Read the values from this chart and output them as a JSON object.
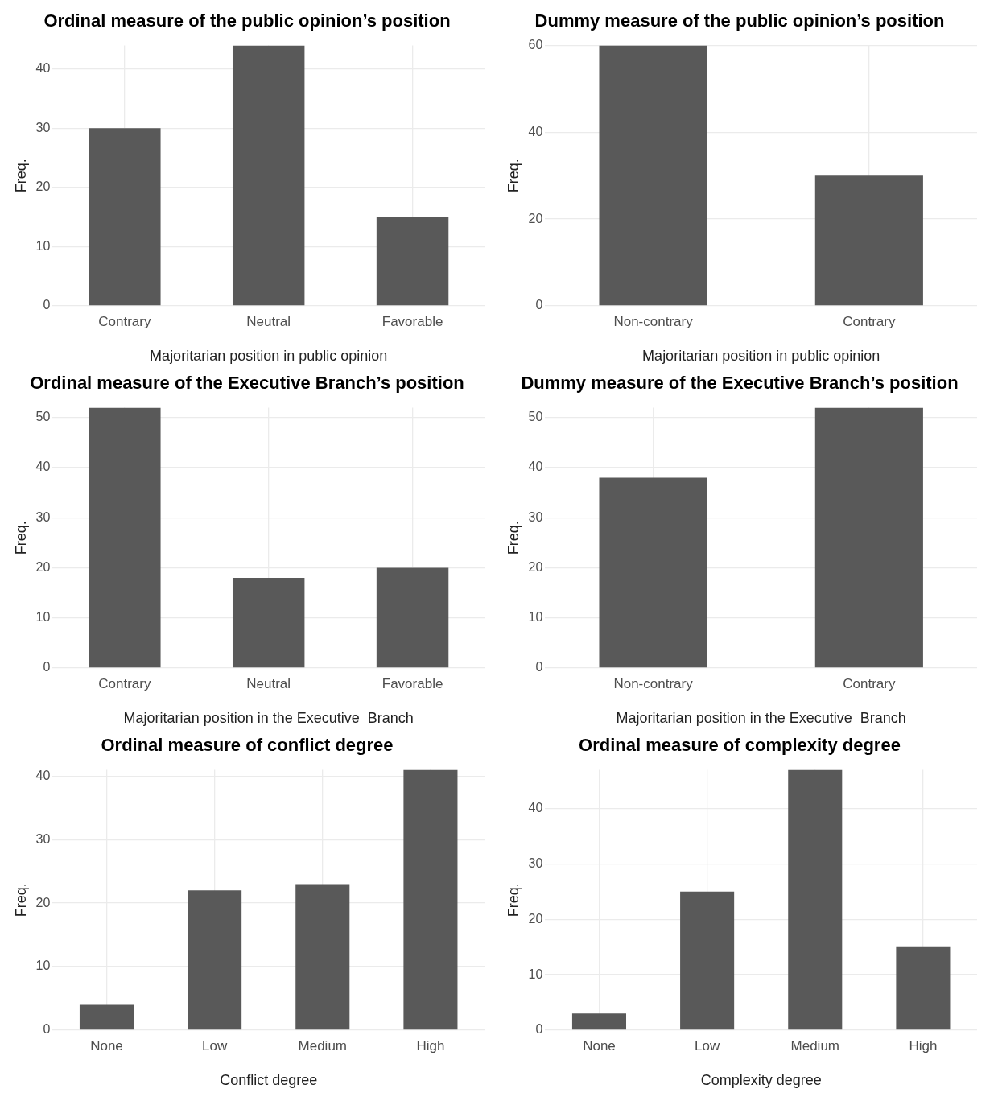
{
  "chart_data": [
    {
      "type": "bar",
      "title": "Ordinal measure of the public opinion’s position",
      "xlabel": "Majoritarian position in public opinion",
      "ylabel": "Freq.",
      "categories": [
        "Contrary",
        "Neutral",
        "Favorable"
      ],
      "values": [
        30,
        44,
        15
      ],
      "color": "#595959",
      "ylim": [
        0,
        44
      ],
      "yticks": [
        0,
        10,
        20,
        30,
        40
      ],
      "grid": true
    },
    {
      "type": "bar",
      "title": "Dummy measure of the public opinion’s position",
      "xlabel": "Majoritarian position in public opinion",
      "ylabel": "Freq.",
      "categories": [
        "Non-contrary",
        "Contrary"
      ],
      "values": [
        60,
        30
      ],
      "color": "#595959",
      "ylim": [
        0,
        60
      ],
      "yticks": [
        0,
        20,
        40,
        60
      ],
      "grid": true
    },
    {
      "type": "bar",
      "title": "Ordinal measure of the Executive Branch’s position",
      "xlabel": "Majoritarian position in the Executive  Branch",
      "ylabel": "Freq.",
      "categories": [
        "Contrary",
        "Neutral",
        "Favorable"
      ],
      "values": [
        52,
        18,
        20
      ],
      "color": "#595959",
      "ylim": [
        0,
        52
      ],
      "yticks": [
        0,
        10,
        20,
        30,
        40,
        50
      ],
      "grid": true
    },
    {
      "type": "bar",
      "title": "Dummy measure of the Executive Branch’s position",
      "xlabel": "Majoritarian position in the Executive  Branch",
      "ylabel": "Freq.",
      "categories": [
        "Non-contrary",
        "Contrary"
      ],
      "values": [
        38,
        52
      ],
      "color": "#595959",
      "ylim": [
        0,
        52
      ],
      "yticks": [
        0,
        10,
        20,
        30,
        40,
        50
      ],
      "grid": true
    },
    {
      "type": "bar",
      "title": "Ordinal measure of conflict degree",
      "xlabel": "Conflict degree",
      "ylabel": "Freq.",
      "categories": [
        "None",
        "Low",
        "Medium",
        "High"
      ],
      "values": [
        4,
        22,
        23,
        41
      ],
      "color": "#595959",
      "ylim": [
        0,
        41
      ],
      "yticks": [
        0,
        10,
        20,
        30,
        40
      ],
      "grid": true
    },
    {
      "type": "bar",
      "title": "Ordinal measure of complexity degree",
      "xlabel": "Complexity degree",
      "ylabel": "Freq.",
      "categories": [
        "None",
        "Low",
        "Medium",
        "High"
      ],
      "values": [
        3,
        25,
        47,
        15
      ],
      "color": "#595959",
      "ylim": [
        0,
        47
      ],
      "yticks": [
        0,
        10,
        20,
        30,
        40
      ],
      "grid": true
    }
  ]
}
